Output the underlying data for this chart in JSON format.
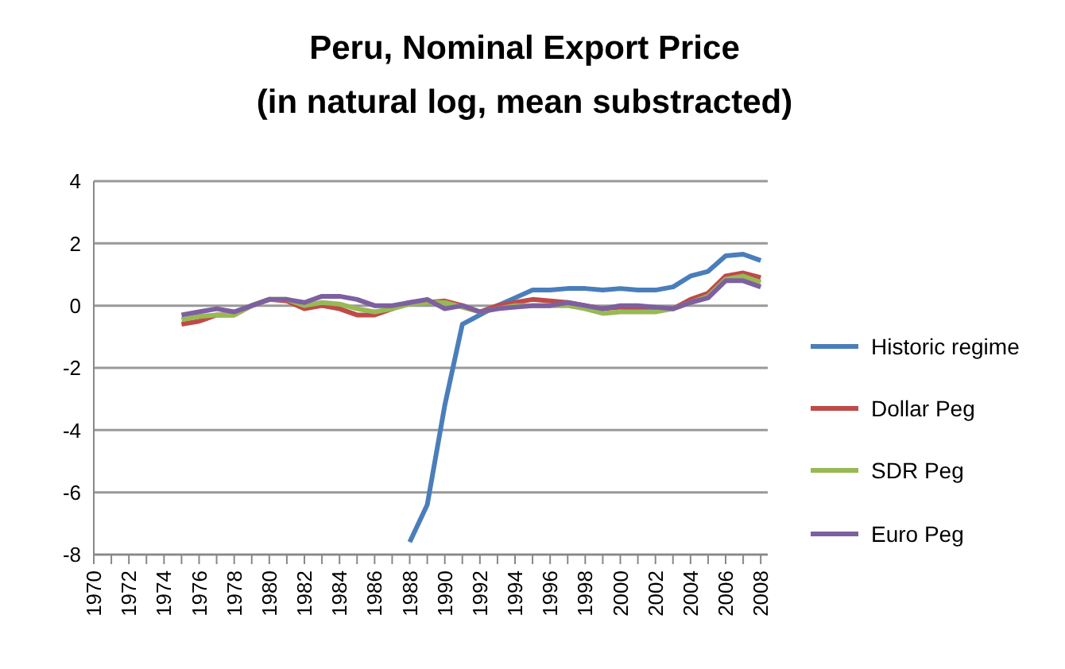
{
  "chart_data": {
    "type": "line",
    "title": "Peru, Nominal Export Price\n(in natural log, mean substracted)",
    "categories": [
      "1970",
      null,
      "1972",
      null,
      "1974",
      null,
      "1976",
      null,
      "1978",
      null,
      "1980",
      null,
      "1982",
      null,
      "1984",
      null,
      "1986",
      null,
      "1988",
      null,
      "1990",
      null,
      "1992",
      null,
      "1994",
      null,
      "1996",
      null,
      "1998",
      null,
      "2000",
      null,
      "2002",
      null,
      "2004",
      null,
      "2006",
      null,
      "2008"
    ],
    "series": [
      {
        "name": "Historic regime",
        "color": "#4a7ebb",
        "values": [
          null,
          null,
          null,
          null,
          null,
          null,
          null,
          null,
          null,
          null,
          null,
          null,
          null,
          null,
          null,
          null,
          null,
          null,
          -7.6,
          -6.4,
          -3.2,
          -0.6,
          -0.3,
          0.0,
          0.25,
          0.5,
          0.5,
          0.55,
          0.55,
          0.5,
          0.55,
          0.5,
          0.5,
          0.6,
          0.95,
          1.1,
          1.6,
          1.65,
          1.45
        ]
      },
      {
        "name": "Dollar Peg",
        "color": "#be4b48",
        "values": [
          null,
          null,
          null,
          null,
          null,
          -0.6,
          -0.5,
          -0.3,
          -0.3,
          0.0,
          0.2,
          0.15,
          -0.1,
          0.0,
          -0.1,
          -0.3,
          -0.3,
          -0.1,
          0.1,
          0.1,
          0.15,
          0.0,
          -0.2,
          0.0,
          0.1,
          0.2,
          0.15,
          0.1,
          0.0,
          -0.1,
          -0.05,
          -0.1,
          -0.1,
          -0.1,
          0.2,
          0.4,
          0.95,
          1.05,
          0.9
        ]
      },
      {
        "name": "SDR Peg",
        "color": "#98b954",
        "values": [
          null,
          null,
          null,
          null,
          null,
          -0.45,
          -0.35,
          -0.3,
          -0.3,
          0.0,
          0.2,
          0.2,
          0.0,
          0.1,
          0.05,
          -0.1,
          -0.2,
          -0.1,
          0.05,
          0.1,
          0.1,
          -0.05,
          -0.2,
          -0.1,
          0.0,
          0.0,
          0.0,
          0.0,
          -0.1,
          -0.25,
          -0.2,
          -0.2,
          -0.2,
          -0.1,
          0.1,
          0.3,
          0.85,
          0.95,
          0.75
        ]
      },
      {
        "name": "Euro Peg",
        "color": "#7d60a0",
        "values": [
          null,
          null,
          null,
          null,
          null,
          -0.3,
          -0.2,
          -0.1,
          -0.2,
          0.0,
          0.2,
          0.2,
          0.1,
          0.3,
          0.3,
          0.2,
          0.0,
          0.0,
          0.1,
          0.2,
          -0.1,
          0.0,
          -0.2,
          -0.1,
          -0.05,
          0.0,
          0.0,
          0.1,
          0.0,
          -0.1,
          0.0,
          0.0,
          -0.05,
          -0.1,
          0.1,
          0.25,
          0.8,
          0.8,
          0.6
        ]
      }
    ],
    "ylim": [
      -8,
      4
    ],
    "yticks": [
      -8,
      -6,
      -4,
      -2,
      0,
      2,
      4
    ],
    "grid": "y",
    "legend": "right",
    "marker": "none"
  }
}
